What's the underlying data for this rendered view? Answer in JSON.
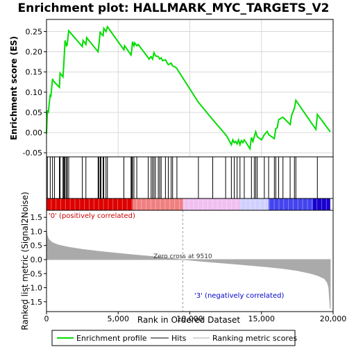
{
  "chart_data": [
    {
      "type": "line",
      "panel": "enrichment-profile",
      "title": "Enrichment plot: HALLMARK_MYC_TARGETS_V2",
      "ylabel": "Enrichment score (ES)",
      "xlim": [
        0,
        20000
      ],
      "ylim": [
        -0.06,
        0.28
      ],
      "yticks": [
        -0.05,
        0.0,
        0.05,
        0.1,
        0.15,
        0.2,
        0.25
      ],
      "ytick_labels": [
        "-0.05",
        "0.00",
        "0.05",
        "0.10",
        "0.15",
        "0.20",
        "0.25"
      ],
      "grid": true,
      "series": [
        {
          "name": "Enrichment profile",
          "color": "#00dd00",
          "x": [
            0,
            60,
            120,
            260,
            300,
            420,
            480,
            560,
            900,
            950,
            1150,
            1200,
            1250,
            1300,
            1400,
            1450,
            1550,
            2500,
            2550,
            2750,
            2800,
            3600,
            3650,
            3750,
            3800,
            3950,
            4000,
            4150,
            4250,
            5400,
            5450,
            5900,
            5950,
            6000,
            6100,
            6150,
            6300,
            6400,
            7100,
            7150,
            7300,
            7400,
            7500,
            7600,
            7800,
            7900,
            8000,
            8100,
            8300,
            8500,
            8700,
            8800,
            9000,
            9100,
            10600,
            11600,
            12500,
            12600,
            12900,
            13000,
            13100,
            13200,
            13300,
            13400,
            13500,
            13600,
            13700,
            13800,
            14200,
            14300,
            14400,
            14500,
            14600,
            14700,
            15000,
            15200,
            15400,
            15500,
            15900,
            16000,
            16100,
            16200,
            16500,
            17000,
            17100,
            17300,
            17400,
            18800,
            18900,
            19800
          ],
          "y": [
            -0.003,
            0.055,
            0.048,
            0.095,
            0.088,
            0.133,
            0.128,
            0.125,
            0.112,
            0.147,
            0.138,
            0.165,
            0.198,
            0.228,
            0.215,
            0.218,
            0.252,
            0.213,
            0.228,
            0.218,
            0.235,
            0.2,
            0.215,
            0.25,
            0.245,
            0.24,
            0.258,
            0.25,
            0.262,
            0.205,
            0.215,
            0.192,
            0.205,
            0.225,
            0.215,
            0.222,
            0.215,
            0.218,
            0.185,
            0.182,
            0.188,
            0.182,
            0.198,
            0.19,
            0.188,
            0.182,
            0.185,
            0.178,
            0.18,
            0.168,
            0.172,
            0.165,
            0.162,
            0.158,
            0.075,
            0.032,
            -0.005,
            -0.01,
            -0.03,
            -0.018,
            -0.025,
            -0.022,
            -0.028,
            -0.018,
            -0.03,
            -0.02,
            -0.025,
            -0.018,
            -0.04,
            -0.012,
            -0.022,
            -0.01,
            0.002,
            -0.01,
            -0.018,
            -0.005,
            0.003,
            -0.005,
            -0.015,
            0.01,
            0.012,
            0.032,
            0.038,
            0.02,
            0.042,
            0.06,
            0.08,
            0.008,
            0.045,
            0.002
          ]
        }
      ]
    },
    {
      "type": "scatter",
      "panel": "hits",
      "series": [
        {
          "name": "Hits",
          "color": "#000000",
          "x": [
            60,
            260,
            420,
            560,
            900,
            950,
            1150,
            1200,
            1250,
            1300,
            1400,
            1450,
            1550,
            2500,
            2750,
            3600,
            3650,
            3750,
            3800,
            3950,
            4000,
            4150,
            4250,
            5400,
            5900,
            5950,
            6000,
            6100,
            6300,
            7100,
            7300,
            7400,
            7500,
            7600,
            7800,
            7900,
            8000,
            8300,
            8500,
            8700,
            8800,
            9100,
            10600,
            11600,
            12500,
            12900,
            13100,
            13300,
            13500,
            13800,
            14300,
            14500,
            14600,
            14700,
            15200,
            15500,
            15900,
            16000,
            16200,
            16500,
            17000,
            17300,
            17400,
            18900
          ]
        }
      ]
    },
    {
      "type": "heatmap",
      "panel": "ranking-bar",
      "colors": [
        "#dd0000",
        "#f08080",
        "#f0c0f0",
        "#d0d0ff",
        "#4444ee",
        "#1a00cc"
      ],
      "stops": [
        0,
        6000,
        9510,
        13500,
        15500,
        18600,
        19800
      ]
    },
    {
      "type": "area",
      "panel": "ranked-metric",
      "xlabel": "Rank in Ordered Dataset",
      "ylabel": "Ranked list metric (Signal2Noise)",
      "xlim": [
        0,
        20000
      ],
      "ylim": [
        -1.85,
        1.75
      ],
      "xticks": [
        0,
        5000,
        10000,
        15000,
        20000
      ],
      "xtick_labels": [
        "0",
        "5,000",
        "10,000",
        "15,000",
        "20,000"
      ],
      "yticks": [
        -1.5,
        -1.0,
        -0.5,
        0.0,
        0.5,
        1.0,
        1.5
      ],
      "ytick_labels": [
        "-1.5",
        "-1.0",
        "-0.5",
        "0.0",
        "0.5",
        "1.0",
        "1.5"
      ],
      "grid": false,
      "series": [
        {
          "name": "Ranking metric scores",
          "color": "#aaaaaa",
          "x": [
            0,
            50,
            150,
            400,
            800,
            1500,
            2500,
            4000,
            6000,
            7500,
            9510,
            11000,
            13000,
            15000,
            16500,
            17500,
            18500,
            19000,
            19400,
            19600,
            19700,
            19750,
            19800
          ],
          "y": [
            1.02,
            0.85,
            0.72,
            0.6,
            0.52,
            0.44,
            0.36,
            0.27,
            0.17,
            0.1,
            0.0,
            -0.07,
            -0.15,
            -0.24,
            -0.32,
            -0.39,
            -0.5,
            -0.58,
            -0.68,
            -0.82,
            -1.0,
            -1.4,
            -1.75
          ]
        }
      ]
    }
  ],
  "annotations": {
    "positive_label": "'0' (positively correlated)",
    "negative_label": "'3' (negatively correlated)",
    "zero_cross_label": "Zero cross at 9510",
    "zero_cross_x": 9510
  },
  "legend": {
    "placement": "bottom",
    "items": [
      {
        "label": "Enrichment profile",
        "color": "#00dd00"
      },
      {
        "label": "Hits",
        "color": "#000000"
      },
      {
        "label": "Ranking metric scores",
        "color": "#aaaaaa"
      }
    ]
  }
}
